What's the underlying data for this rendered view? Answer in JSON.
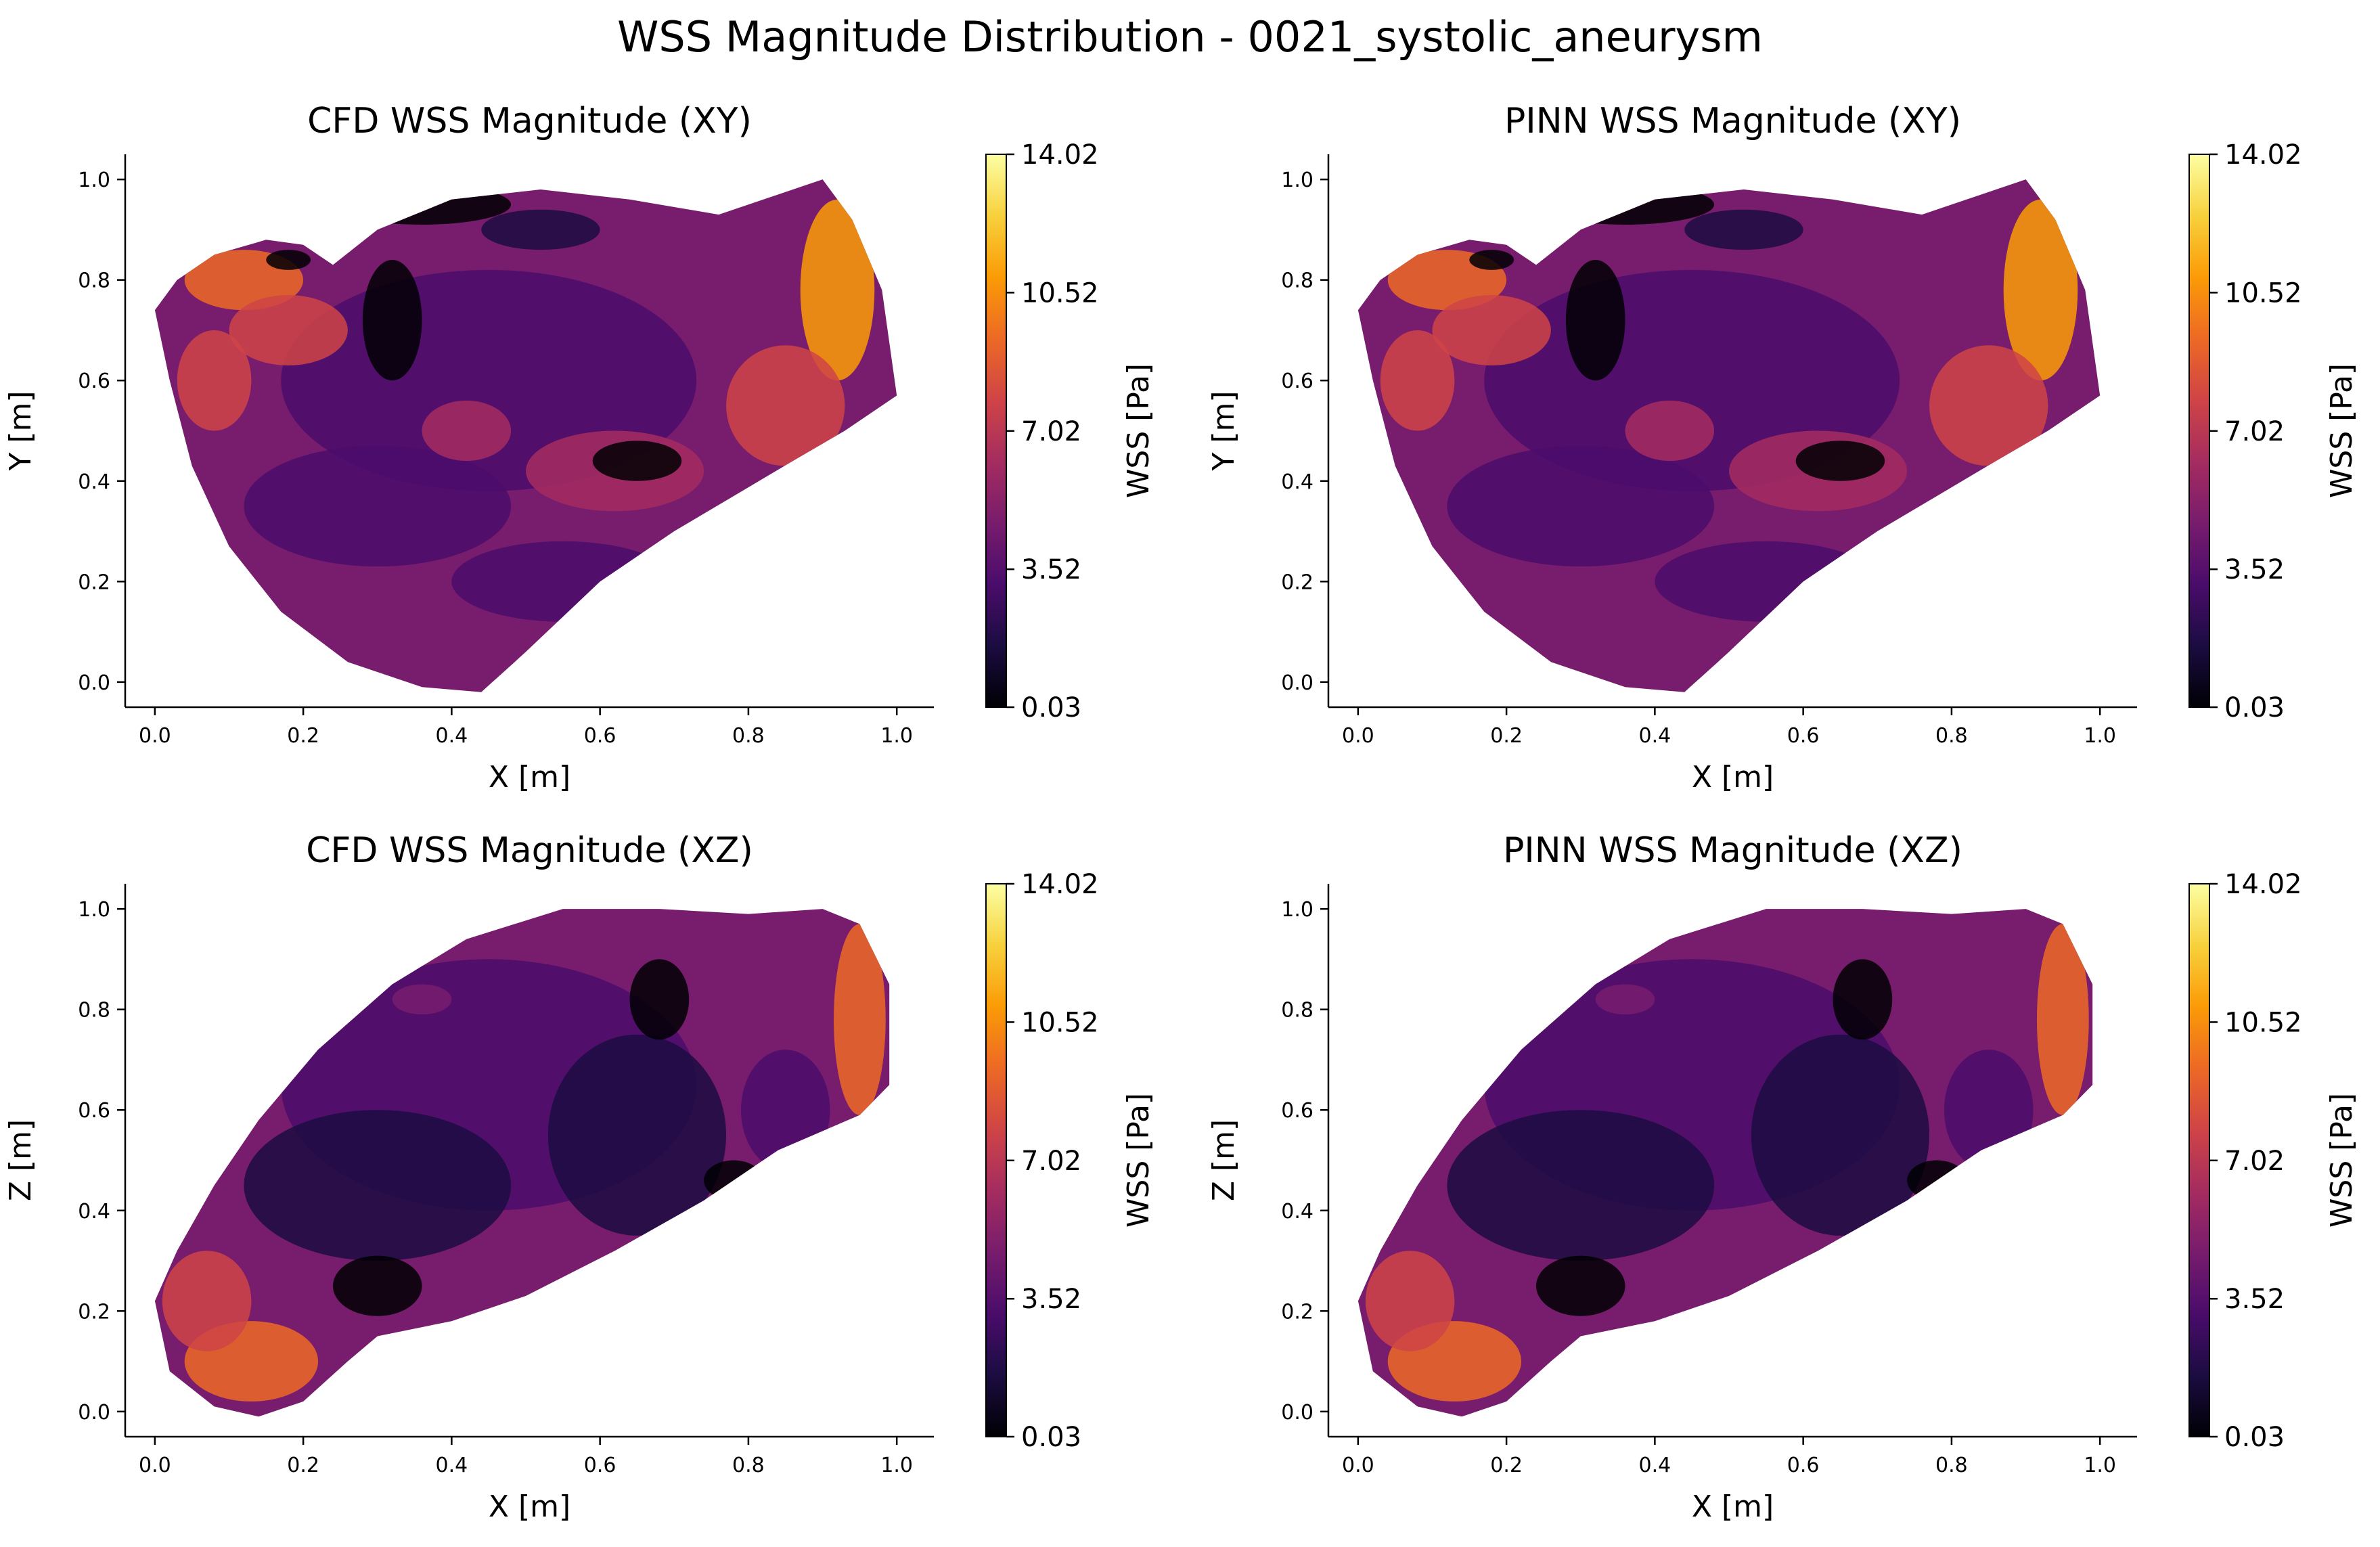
{
  "figure": {
    "title": "WSS Magnitude Distribution - 0021_systolic_aneurysm"
  },
  "colormap": {
    "name": "inferno",
    "stops": [
      "#000004",
      "#1b0c41",
      "#4a0c6b",
      "#781c6d",
      "#a52c60",
      "#cf4446",
      "#ed6925",
      "#fb9b06",
      "#f7d13d",
      "#fcffa4"
    ]
  },
  "chart_data": [
    {
      "type": "scatter",
      "title": "CFD WSS Magnitude (XY)",
      "xlabel": "X [m]",
      "ylabel": "Y [m]",
      "xlim": [
        -0.04,
        1.05
      ],
      "ylim": [
        -0.05,
        1.05
      ],
      "xticks": [
        "0.0",
        "0.2",
        "0.4",
        "0.6",
        "0.8",
        "1.0"
      ],
      "yticks": [
        "0.0",
        "0.2",
        "0.4",
        "0.6",
        "0.8",
        "1.0"
      ],
      "colorbar": {
        "label": "WSS [Pa]",
        "ticks": [
          "0.03",
          "3.52",
          "7.02",
          "10.52",
          "14.02"
        ],
        "range": [
          0.03,
          14.02
        ]
      }
    },
    {
      "type": "scatter",
      "title": "PINN WSS Magnitude (XY)",
      "xlabel": "X [m]",
      "ylabel": "Y [m]",
      "xlim": [
        -0.04,
        1.05
      ],
      "ylim": [
        -0.05,
        1.05
      ],
      "xticks": [
        "0.0",
        "0.2",
        "0.4",
        "0.6",
        "0.8",
        "1.0"
      ],
      "yticks": [
        "0.0",
        "0.2",
        "0.4",
        "0.6",
        "0.8",
        "1.0"
      ],
      "colorbar": {
        "label": "WSS [Pa]",
        "ticks": [
          "0.03",
          "3.52",
          "7.02",
          "10.52",
          "14.02"
        ],
        "range": [
          0.03,
          14.02
        ]
      }
    },
    {
      "type": "scatter",
      "title": "CFD WSS Magnitude (XZ)",
      "xlabel": "X [m]",
      "ylabel": "Z [m]",
      "xlim": [
        -0.04,
        1.05
      ],
      "ylim": [
        -0.05,
        1.05
      ],
      "xticks": [
        "0.0",
        "0.2",
        "0.4",
        "0.6",
        "0.8",
        "1.0"
      ],
      "yticks": [
        "0.0",
        "0.2",
        "0.4",
        "0.6",
        "0.8",
        "1.0"
      ],
      "colorbar": {
        "label": "WSS [Pa]",
        "ticks": [
          "0.03",
          "3.52",
          "7.02",
          "10.52",
          "14.02"
        ],
        "range": [
          0.03,
          14.02
        ]
      }
    },
    {
      "type": "scatter",
      "title": "PINN WSS Magnitude (XZ)",
      "xlabel": "X [m]",
      "ylabel": "Z [m]",
      "xlim": [
        -0.04,
        1.05
      ],
      "ylim": [
        -0.05,
        1.05
      ],
      "xticks": [
        "0.0",
        "0.2",
        "0.4",
        "0.6",
        "0.8",
        "1.0"
      ],
      "yticks": [
        "0.0",
        "0.2",
        "0.4",
        "0.6",
        "0.8",
        "1.0"
      ],
      "colorbar": {
        "label": "WSS [Pa]",
        "ticks": [
          "0.03",
          "3.52",
          "7.02",
          "10.52",
          "14.02"
        ],
        "range": [
          0.03,
          14.02
        ]
      }
    }
  ]
}
